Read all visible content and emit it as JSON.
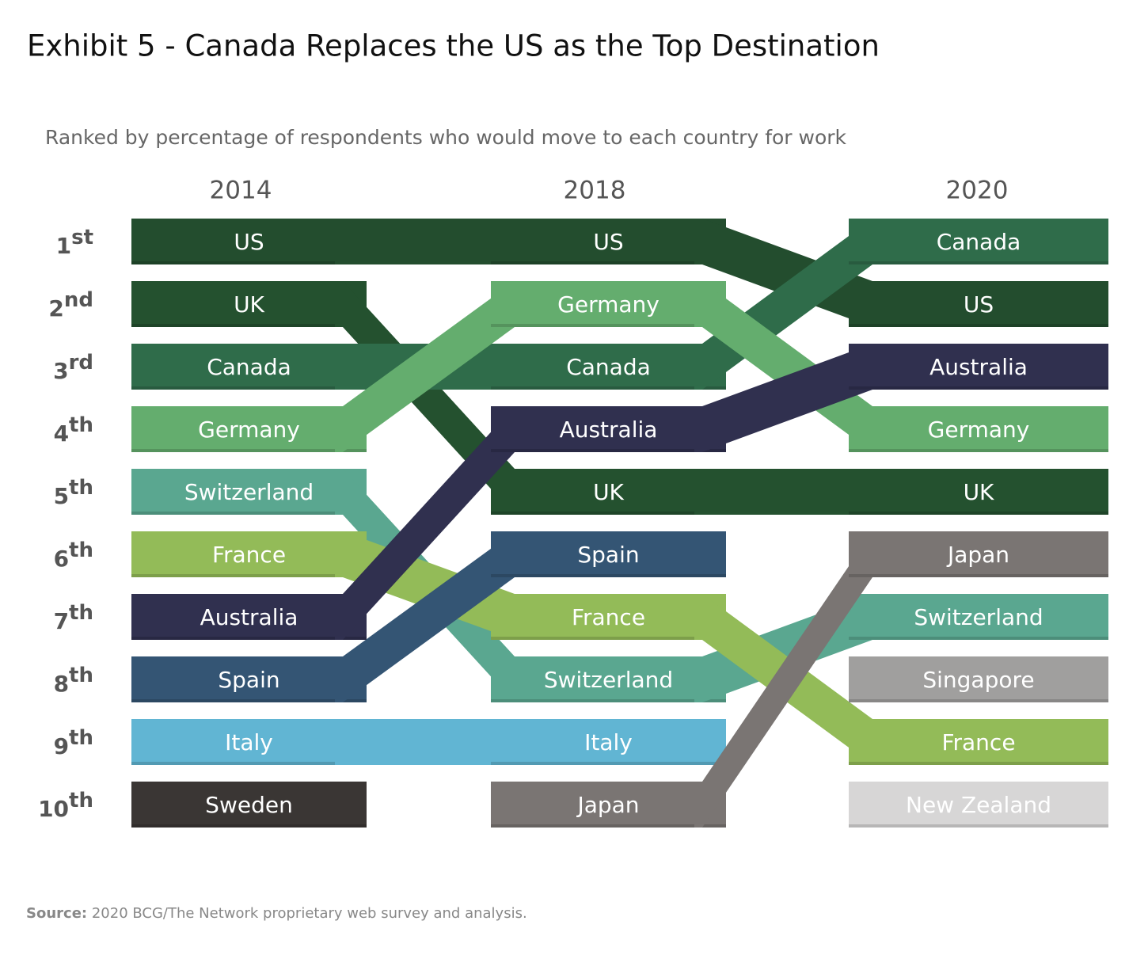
{
  "chart_data": {
    "type": "bump",
    "title": "Exhibit 5 - Canada Replaces the US as the Top Destination",
    "subtitle": "Ranked by percentage of respondents who would move to each country for work",
    "columns": [
      "2014",
      "2018",
      "2020"
    ],
    "rank_labels": [
      {
        "number": "1",
        "suffix": "st"
      },
      {
        "number": "2",
        "suffix": "nd"
      },
      {
        "number": "3",
        "suffix": "rd"
      },
      {
        "number": "4",
        "suffix": "th"
      },
      {
        "number": "5",
        "suffix": "th"
      },
      {
        "number": "6",
        "suffix": "th"
      },
      {
        "number": "7",
        "suffix": "th"
      },
      {
        "number": "8",
        "suffix": "th"
      },
      {
        "number": "9",
        "suffix": "th"
      },
      {
        "number": "10",
        "suffix": "th"
      }
    ],
    "series": [
      {
        "name": "US",
        "color": "#234d2e",
        "ranks": [
          1,
          1,
          2
        ]
      },
      {
        "name": "UK",
        "color": "#24512f",
        "ranks": [
          2,
          5,
          5
        ]
      },
      {
        "name": "Canada",
        "color": "#2f6c4a",
        "ranks": [
          3,
          3,
          1
        ]
      },
      {
        "name": "Germany",
        "color": "#64ad6e",
        "ranks": [
          4,
          2,
          4
        ]
      },
      {
        "name": "Switzerland",
        "color": "#5aa790",
        "ranks": [
          5,
          8,
          7
        ]
      },
      {
        "name": "France",
        "color": "#93bb58",
        "ranks": [
          6,
          7,
          9
        ]
      },
      {
        "name": "Australia",
        "color": "#30304f",
        "ranks": [
          7,
          4,
          3
        ]
      },
      {
        "name": "Spain",
        "color": "#345574",
        "ranks": [
          8,
          6,
          null
        ]
      },
      {
        "name": "Italy",
        "color": "#61b5d3",
        "ranks": [
          9,
          9,
          null
        ]
      },
      {
        "name": "Sweden",
        "color": "#3a3634",
        "ranks": [
          10,
          null,
          null
        ]
      },
      {
        "name": "Japan",
        "color": "#7a7573",
        "ranks": [
          null,
          10,
          6
        ]
      },
      {
        "name": "Singapore",
        "color": "#a09f9e",
        "ranks": [
          null,
          null,
          8
        ]
      },
      {
        "name": "New Zealand",
        "color": "#d7d6d6",
        "ranks": [
          null,
          null,
          10
        ]
      }
    ],
    "source_label": "Source:",
    "source_text": " 2020 BCG/The Network proprietary web survey and analysis."
  }
}
